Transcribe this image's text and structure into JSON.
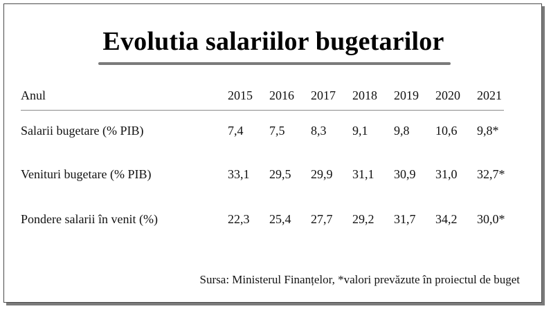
{
  "title": "Evolutia salariilor bugetarilor",
  "table": {
    "header_label": "Anul",
    "years": [
      "2015",
      "2016",
      "2017",
      "2018",
      "2019",
      "2020",
      "2021"
    ],
    "rows": [
      {
        "label": "Salarii bugetare (% PIB)",
        "values": [
          "7,4",
          "7,5",
          "8,3",
          "9,1",
          "9,8",
          "10,6",
          "9,8*"
        ]
      },
      {
        "label": "Venituri bugetare (% PIB)",
        "values": [
          "33,1",
          "29,5",
          "29,9",
          "31,1",
          "30,9",
          "31,0",
          "32,7*"
        ]
      },
      {
        "label": "Pondere salarii în venit (%)",
        "values": [
          "22,3",
          "25,4",
          "27,7",
          "29,2",
          "31,7",
          "34,2",
          "30,0*"
        ]
      }
    ]
  },
  "source": "Sursa: Ministerul Finanțelor, *valori prevăzute în proiectul de buget"
}
